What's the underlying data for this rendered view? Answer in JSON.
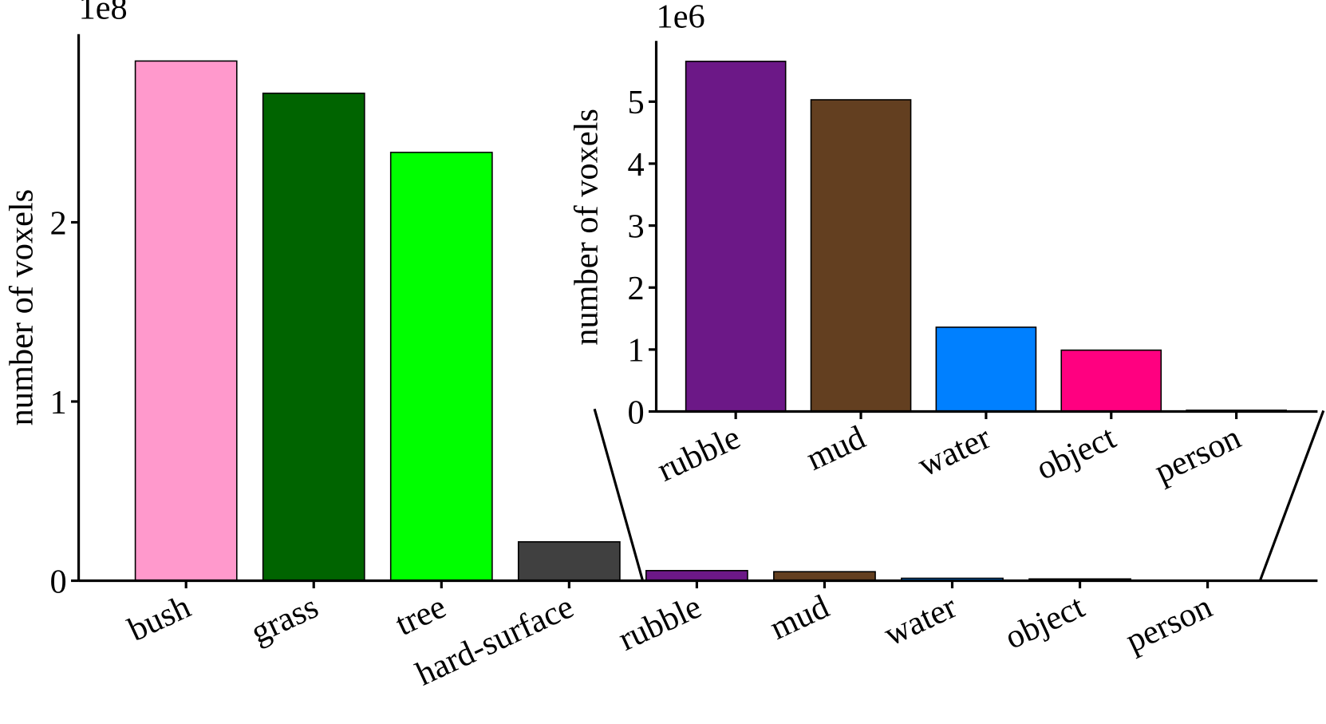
{
  "chart_data": [
    {
      "type": "bar",
      "offset_text": "1e8",
      "ylabel": "number of voxels",
      "categories": [
        "bush",
        "grass",
        "tree",
        "hard-surface",
        "rubble",
        "mud",
        "water",
        "object",
        "person"
      ],
      "values": [
        2.9,
        2.72,
        2.39,
        0.217,
        0.0565,
        0.0503,
        0.0136,
        0.0099,
        0.0002
      ],
      "colors": [
        "#ff99cc",
        "#006400",
        "#00ff00",
        "#404040",
        "#6c1887",
        "#633f20",
        "#0080ff",
        "#ff0080",
        "#808080"
      ],
      "ylim": [
        0,
        3.05
      ],
      "yticks": [
        0,
        1,
        2
      ]
    },
    {
      "type": "bar",
      "offset_text": "1e6",
      "ylabel": "number of voxels",
      "categories": [
        "rubble",
        "mud",
        "water",
        "object",
        "person"
      ],
      "values": [
        5.65,
        5.03,
        1.36,
        0.99,
        0.02
      ],
      "colors": [
        "#6c1887",
        "#633f20",
        "#0080ff",
        "#ff0080",
        "#808080"
      ],
      "ylim": [
        0,
        5.98
      ],
      "yticks": [
        0,
        1,
        2,
        3,
        4,
        5
      ]
    }
  ]
}
